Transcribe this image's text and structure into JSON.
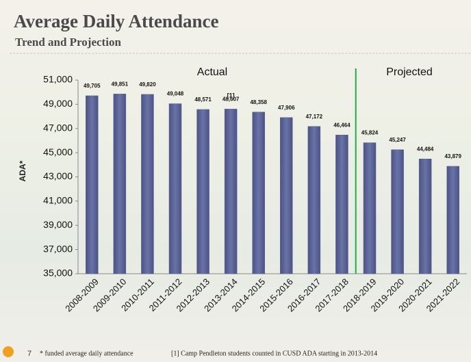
{
  "chart_data": {
    "type": "bar",
    "title": "Average Daily Attendance",
    "subtitle": "Trend and Projection",
    "y_label": "ADA*",
    "categories": [
      "2008-2009",
      "2009-2010",
      "2010-2011",
      "2011-2012",
      "2012-2013",
      "2013-2014",
      "2014-2015",
      "2015-2016",
      "2016-2017",
      "2017-2018",
      "2018-2019",
      "2019-2020",
      "2020-2021",
      "2021-2022"
    ],
    "values": [
      49705,
      49851,
      49820,
      49048,
      48571,
      48607,
      48358,
      47906,
      47172,
      46464,
      45824,
      45247,
      44484,
      43879
    ],
    "value_labels": [
      "49,705",
      "49,851",
      "49,820",
      "49,048",
      "48,571",
      "48,607",
      "48,358",
      "47,906",
      "47,172",
      "46,464",
      "45,824",
      "45,247",
      "44,484",
      "43,879"
    ],
    "color": "#5b6394",
    "ylim": [
      35000,
      51000
    ],
    "yticks": [
      {
        "value": 35000,
        "label": "35,000"
      },
      {
        "value": 37000,
        "label": "37,000"
      },
      {
        "value": 39000,
        "label": "39,000"
      },
      {
        "value": 41000,
        "label": "41,000"
      },
      {
        "value": 43000,
        "label": "43,000"
      },
      {
        "value": 45000,
        "label": "45,000"
      },
      {
        "value": 47000,
        "label": "47,000"
      },
      {
        "value": 49000,
        "label": "49,000"
      },
      {
        "value": 51000,
        "label": "51,000"
      }
    ],
    "annotations": [
      "Actual",
      "Projected",
      "[1]"
    ],
    "footer": {
      "page": "7",
      "notes": [
        "* funded average daily attendance",
        "[1] Camp Pendleton students counted in CUSD ADA starting in 2013-2014"
      ]
    }
  }
}
